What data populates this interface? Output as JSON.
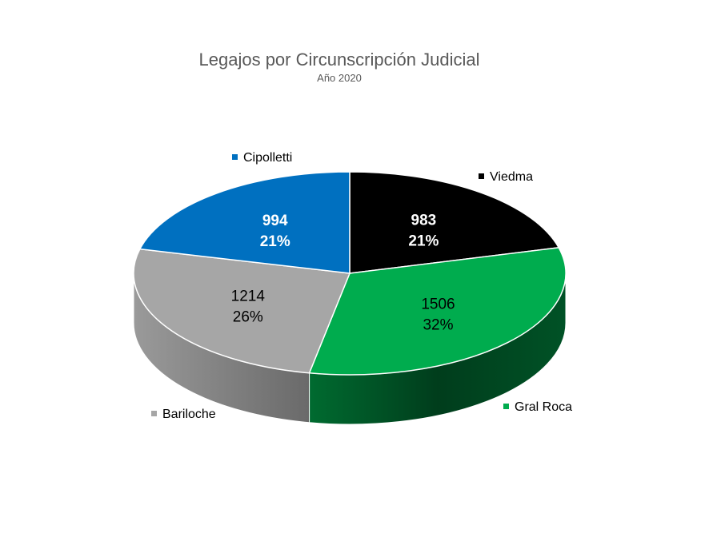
{
  "chart_data": {
    "type": "pie",
    "title": "Legajos por Circunscripción Judicial",
    "subtitle": "Año 2020",
    "categories": [
      "Viedma",
      "Gral Roca",
      "Bariloche",
      "Cipolletti"
    ],
    "values": [
      983,
      1506,
      1214,
      994
    ],
    "percent_labels": [
      "21%",
      "32%",
      "26%",
      "21%"
    ],
    "value_labels": [
      "983",
      "1506",
      "1214",
      "994"
    ],
    "colors": [
      "#000000",
      "#00AC4E",
      "#A6A6A6",
      "#0070C0"
    ],
    "side_colors": [
      "#1a1a1a",
      "#005a28",
      "#6e6e6e",
      "#004a80"
    ],
    "label_colors": [
      "#ffffff",
      "#000000",
      "#000000",
      "#ffffff"
    ],
    "style": "3d-pie",
    "legend_placement": "around"
  }
}
